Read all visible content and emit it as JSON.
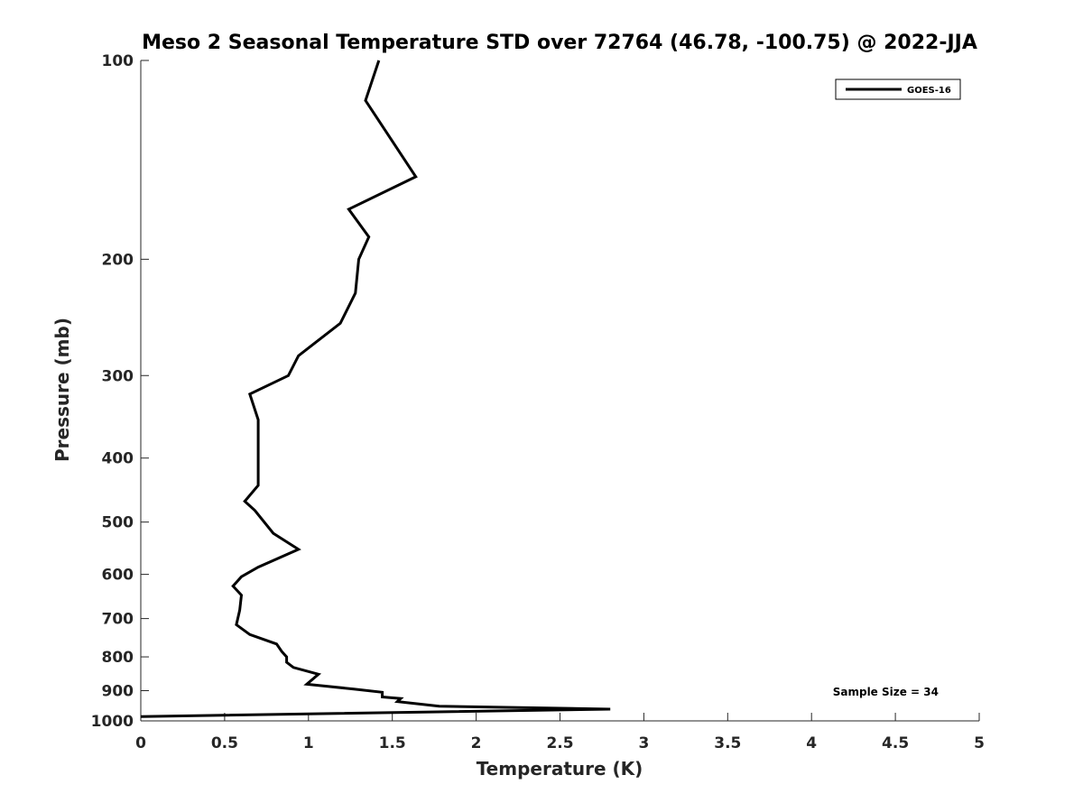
{
  "chart_data": {
    "type": "line",
    "title": "Meso 2 Seasonal Temperature STD over 72764 (46.78, -100.75) @ 2022-JJA",
    "xlabel": "Temperature (K)",
    "ylabel": "Pressure (mb)",
    "xlim": [
      0,
      5
    ],
    "ylim": [
      100,
      1000
    ],
    "y_scale": "log",
    "y_reversed": true,
    "grid": false,
    "legend_position": "top-right",
    "x_ticks": [
      0,
      0.5,
      1,
      1.5,
      2,
      2.5,
      3,
      3.5,
      4,
      4.5,
      5
    ],
    "x_tick_labels": [
      "0",
      "0.5",
      "1",
      "1.5",
      "2",
      "2.5",
      "3",
      "3.5",
      "4",
      "4.5",
      "5"
    ],
    "y_ticks": [
      100,
      200,
      300,
      400,
      500,
      600,
      700,
      800,
      900,
      1000
    ],
    "y_tick_labels": [
      "100",
      "200",
      "300",
      "400",
      "500",
      "600",
      "700",
      "800",
      "900",
      "1000"
    ],
    "annotation": "Sample Size = 34",
    "series": [
      {
        "name": "GOES-16",
        "color": "#000000",
        "points": [
          [
            1.42,
            100
          ],
          [
            1.34,
            115
          ],
          [
            1.64,
            150
          ],
          [
            1.24,
            168
          ],
          [
            1.36,
            185
          ],
          [
            1.3,
            200
          ],
          [
            1.28,
            225
          ],
          [
            1.19,
            250
          ],
          [
            0.94,
            280
          ],
          [
            0.88,
            300
          ],
          [
            0.65,
            320
          ],
          [
            0.7,
            350
          ],
          [
            0.7,
            410
          ],
          [
            0.7,
            440
          ],
          [
            0.62,
            465
          ],
          [
            0.68,
            480
          ],
          [
            0.79,
            520
          ],
          [
            0.94,
            550
          ],
          [
            0.7,
            585
          ],
          [
            0.6,
            605
          ],
          [
            0.55,
            625
          ],
          [
            0.6,
            645
          ],
          [
            0.59,
            680
          ],
          [
            0.57,
            715
          ],
          [
            0.65,
            740
          ],
          [
            0.81,
            765
          ],
          [
            0.84,
            785
          ],
          [
            0.87,
            800
          ],
          [
            0.87,
            815
          ],
          [
            0.91,
            830
          ],
          [
            1.06,
            850
          ],
          [
            0.99,
            880
          ],
          [
            1.27,
            895
          ],
          [
            1.44,
            905
          ],
          [
            1.44,
            920
          ],
          [
            1.55,
            925
          ],
          [
            1.54,
            930
          ],
          [
            1.53,
            935
          ],
          [
            1.78,
            950
          ],
          [
            2.8,
            960
          ],
          [
            0.0,
            985
          ]
        ]
      }
    ]
  }
}
